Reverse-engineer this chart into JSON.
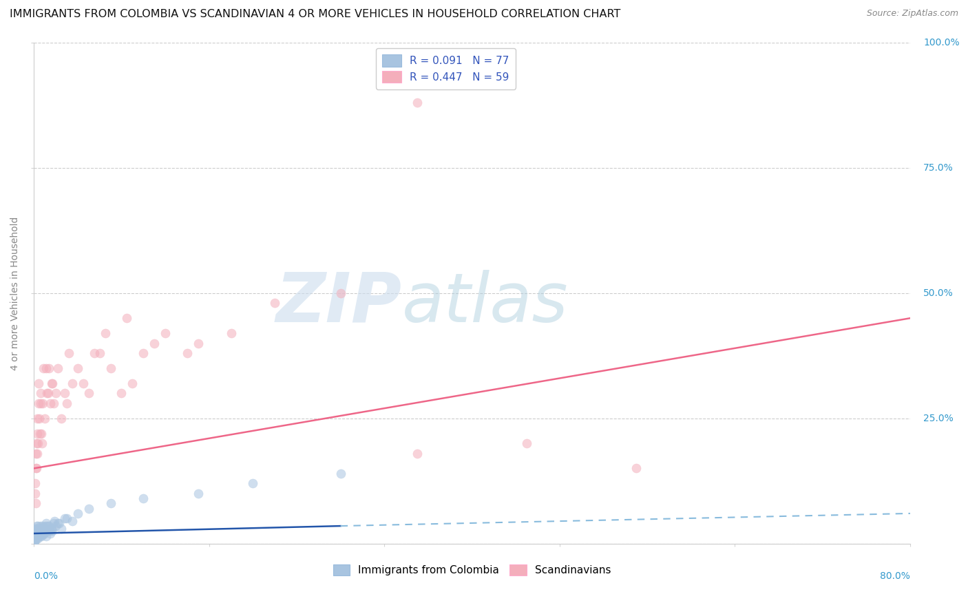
{
  "title": "IMMIGRANTS FROM COLOMBIA VS SCANDINAVIAN 4 OR MORE VEHICLES IN HOUSEHOLD CORRELATION CHART",
  "source": "Source: ZipAtlas.com",
  "ylabel_label": "4 or more Vehicles in Household",
  "legend_blue_r": "R = 0.091",
  "legend_blue_n": "N = 77",
  "legend_pink_r": "R = 0.447",
  "legend_pink_n": "N = 59",
  "blue_color": "#A8C4E0",
  "pink_color": "#F4AEBB",
  "blue_line_color": "#2255AA",
  "pink_line_color": "#EE6688",
  "blue_dash_color": "#88BBDD",
  "watermark_zip": "ZIP",
  "watermark_atlas": "atlas",
  "xlim_min": 0.0,
  "xlim_max": 80.0,
  "ylim_min": 0.0,
  "ylim_max": 100.0,
  "blue_scatter_x": [
    0.05,
    0.08,
    0.1,
    0.12,
    0.15,
    0.18,
    0.2,
    0.22,
    0.25,
    0.28,
    0.3,
    0.32,
    0.35,
    0.38,
    0.4,
    0.42,
    0.45,
    0.48,
    0.5,
    0.55,
    0.6,
    0.65,
    0.7,
    0.75,
    0.8,
    0.85,
    0.9,
    0.95,
    1.0,
    1.05,
    1.1,
    1.15,
    1.2,
    1.3,
    1.4,
    1.5,
    1.6,
    1.7,
    1.8,
    2.0,
    2.2,
    2.5,
    3.0,
    3.5,
    0.06,
    0.09,
    0.11,
    0.14,
    0.17,
    0.21,
    0.24,
    0.27,
    0.31,
    0.36,
    0.41,
    0.47,
    0.53,
    0.58,
    0.63,
    0.72,
    0.82,
    0.92,
    1.02,
    1.12,
    1.25,
    1.45,
    1.65,
    1.9,
    2.3,
    2.8,
    4.0,
    5.0,
    7.0,
    10.0,
    15.0,
    20.0,
    28.0
  ],
  "blue_scatter_y": [
    1.0,
    0.5,
    1.5,
    2.0,
    1.2,
    0.8,
    2.5,
    1.8,
    3.0,
    2.2,
    1.5,
    2.8,
    1.0,
    3.5,
    2.0,
    1.5,
    2.5,
    3.0,
    1.8,
    2.2,
    3.5,
    2.0,
    1.5,
    3.0,
    2.5,
    1.8,
    3.2,
    2.0,
    2.8,
    3.5,
    2.5,
    1.5,
    3.0,
    2.5,
    3.5,
    2.0,
    3.0,
    2.5,
    4.0,
    3.5,
    4.0,
    3.0,
    5.0,
    4.5,
    0.5,
    1.0,
    1.5,
    2.5,
    1.0,
    3.0,
    2.0,
    3.5,
    1.5,
    2.5,
    3.0,
    2.0,
    1.5,
    3.0,
    2.5,
    2.0,
    3.5,
    2.5,
    3.0,
    4.0,
    3.5,
    2.5,
    3.0,
    4.5,
    4.0,
    5.0,
    6.0,
    7.0,
    8.0,
    9.0,
    10.0,
    12.0,
    14.0
  ],
  "pink_scatter_x": [
    0.1,
    0.15,
    0.2,
    0.25,
    0.3,
    0.35,
    0.4,
    0.5,
    0.6,
    0.7,
    0.8,
    0.9,
    1.0,
    1.2,
    1.4,
    1.6,
    1.8,
    2.0,
    2.5,
    3.0,
    3.5,
    4.0,
    5.0,
    6.0,
    7.0,
    8.0,
    9.0,
    10.0,
    12.0,
    15.0,
    0.12,
    0.18,
    0.22,
    0.28,
    0.32,
    0.42,
    0.55,
    0.65,
    0.75,
    1.1,
    1.3,
    1.5,
    1.7,
    2.2,
    2.8,
    3.2,
    4.5,
    5.5,
    6.5,
    8.5,
    11.0,
    14.0,
    18.0,
    22.0,
    28.0,
    35.0,
    45.0,
    55.0,
    35.0
  ],
  "pink_scatter_y": [
    12.0,
    8.0,
    18.0,
    15.0,
    22.0,
    20.0,
    28.0,
    25.0,
    30.0,
    22.0,
    28.0,
    35.0,
    25.0,
    30.0,
    35.0,
    32.0,
    28.0,
    30.0,
    25.0,
    28.0,
    32.0,
    35.0,
    30.0,
    38.0,
    35.0,
    30.0,
    32.0,
    38.0,
    42.0,
    40.0,
    10.0,
    15.0,
    20.0,
    25.0,
    18.0,
    32.0,
    22.0,
    28.0,
    20.0,
    35.0,
    30.0,
    28.0,
    32.0,
    35.0,
    30.0,
    38.0,
    32.0,
    38.0,
    42.0,
    45.0,
    40.0,
    38.0,
    42.0,
    48.0,
    50.0,
    18.0,
    20.0,
    15.0,
    88.0
  ],
  "blue_line_x0": 0.0,
  "blue_line_x1": 28.0,
  "blue_line_y0": 2.0,
  "blue_line_y1": 3.5,
  "blue_dash_x0": 28.0,
  "blue_dash_x1": 80.0,
  "blue_dash_y0": 3.5,
  "blue_dash_y1": 6.0,
  "pink_line_x0": 0.0,
  "pink_line_x1": 80.0,
  "pink_line_y0": 15.0,
  "pink_line_y1": 45.0
}
